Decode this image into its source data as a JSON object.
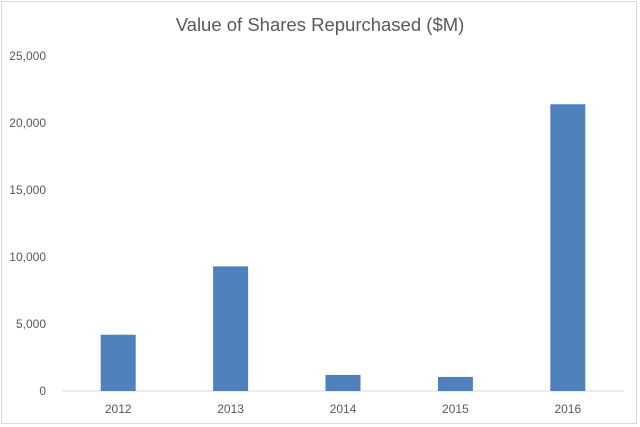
{
  "chart_data": {
    "type": "bar",
    "title": "Value of Shares Repurchased ($M)",
    "categories": [
      "2012",
      "2013",
      "2014",
      "2015",
      "2016"
    ],
    "values": [
      4200,
      9300,
      1200,
      1050,
      21400
    ],
    "ylim": [
      0,
      25000
    ],
    "yticks": [
      0,
      5000,
      10000,
      15000,
      20000,
      25000
    ],
    "ytick_labels": [
      "0",
      "5,000",
      "10,000",
      "15,000",
      "20,000",
      "25,000"
    ],
    "grid": false,
    "legend": "none",
    "bar_color": "#4f81bd"
  }
}
